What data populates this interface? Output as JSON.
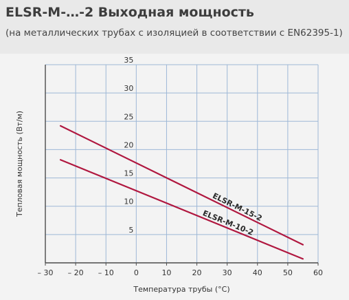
{
  "header": {
    "title": "ELSR-M-…-2 Выходная мощность",
    "subtitle": "(на металлических трубах с изоляцией в соответствии с EN62395-1)"
  },
  "colors": {
    "header_bg": "#e9e9e9",
    "chart_bg": "#f3f3f3",
    "grid": "#9db7d6",
    "series": "#b0173f"
  },
  "chart_data": {
    "type": "line",
    "title": "",
    "xlabel": "Температура трубы (°C)",
    "ylabel": "Тепловая мощность (Вт/м)",
    "xlim": [
      -30,
      60
    ],
    "ylim": [
      0,
      35
    ],
    "grid": true,
    "x_ticks": [
      -30,
      -20,
      -10,
      0,
      10,
      20,
      30,
      40,
      50,
      60
    ],
    "x_tick_labels": [
      "– 30",
      "– 20",
      "– 10",
      "0",
      "10",
      "20",
      "30",
      "40",
      "50",
      "60"
    ],
    "y_ticks": [
      5,
      10,
      15,
      20,
      25,
      30,
      35
    ],
    "y_tick_labels": [
      "5",
      "10",
      "15",
      "20",
      "25",
      "30",
      "35"
    ],
    "series": [
      {
        "name": "ELSR-M-15-2",
        "x": [
          -25,
          55
        ],
        "y": [
          24.2,
          3.2
        ]
      },
      {
        "name": "ELSR-M-10-2",
        "x": [
          -25,
          55
        ],
        "y": [
          18.2,
          0.7
        ]
      }
    ]
  }
}
